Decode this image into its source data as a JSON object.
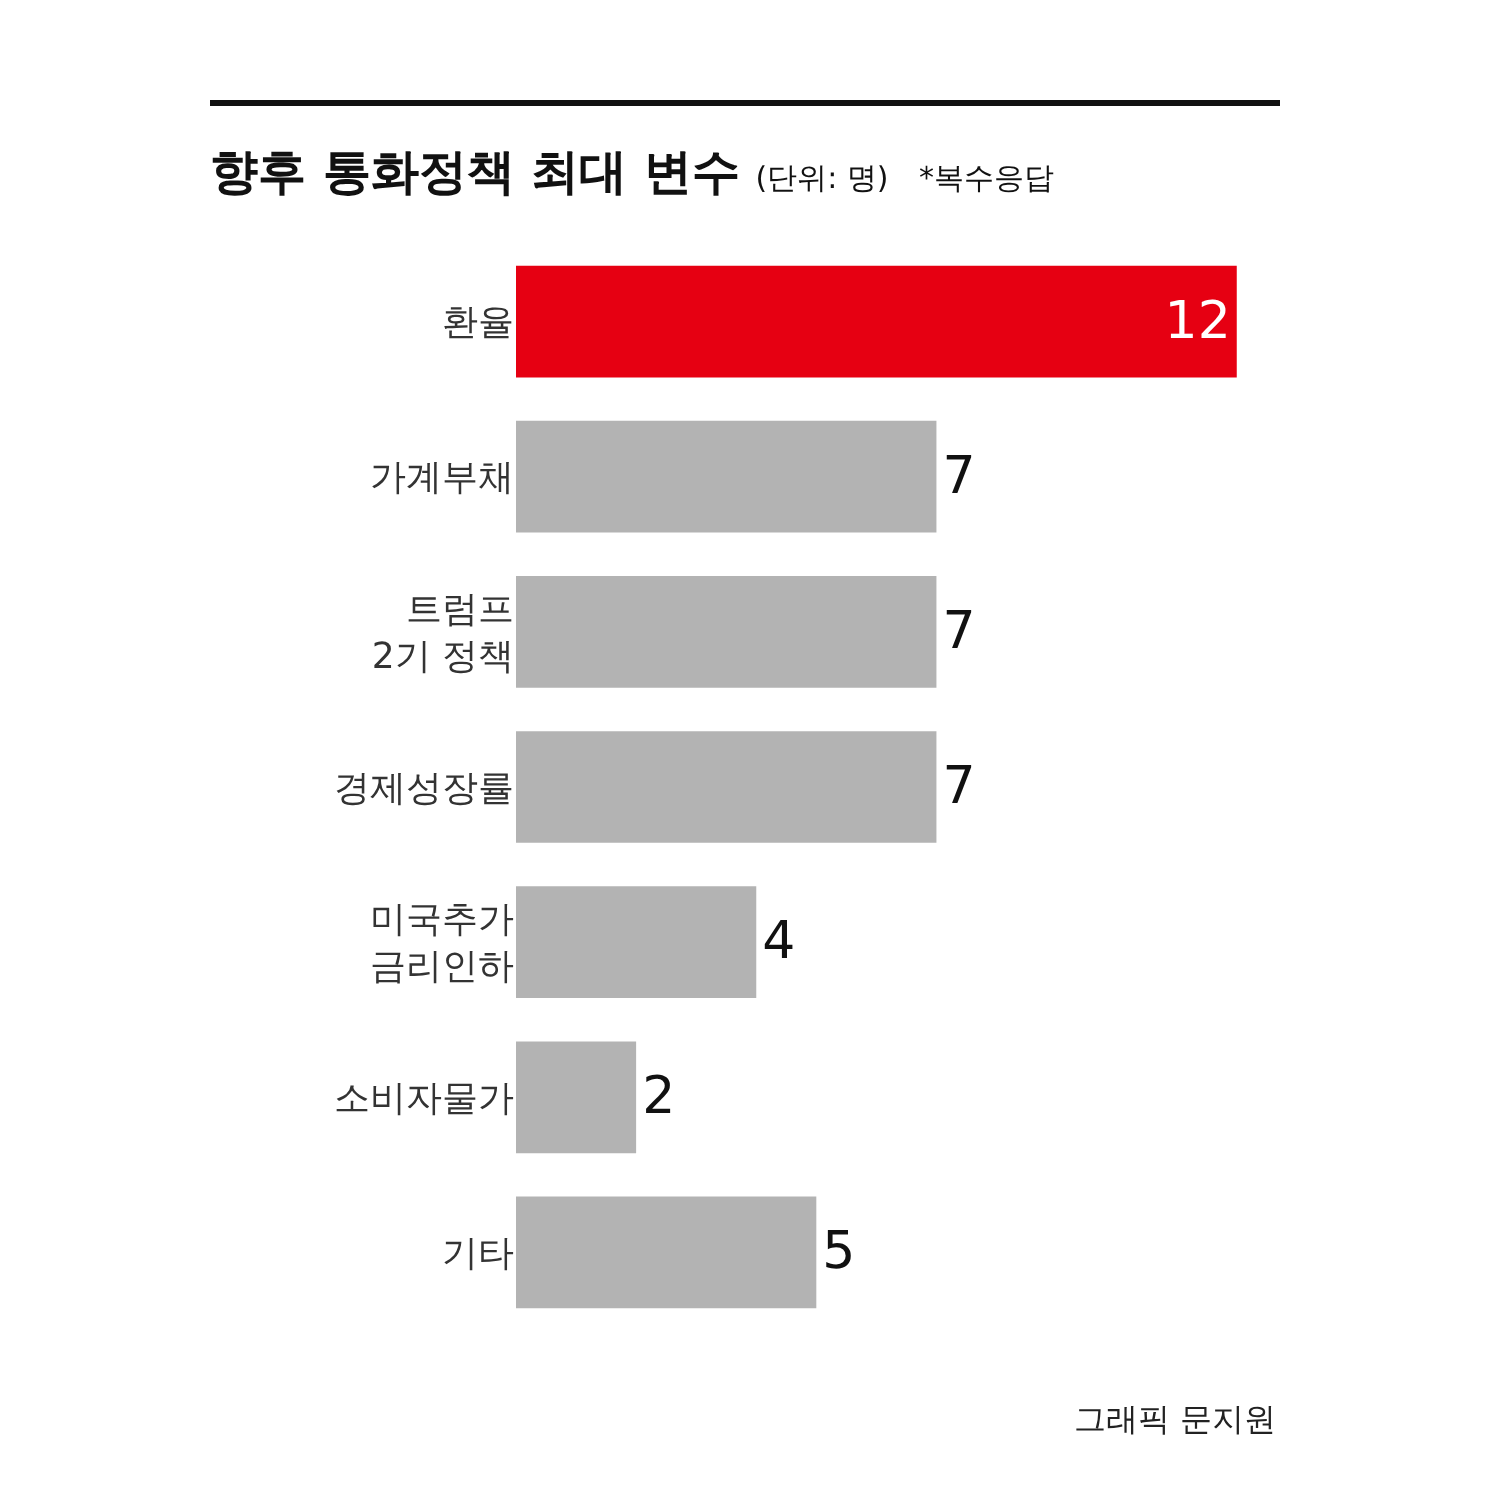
{
  "chart_data": {
    "type": "bar",
    "orientation": "horizontal",
    "title": "향후 통화정책 최대 변수",
    "subtitle": "(단위: 명)",
    "categories": [
      "환율",
      "가계부채",
      "트럼프\n2기 정책",
      "경제성장률",
      "미국추가\n금리인하",
      "소비자물가",
      "기타"
    ],
    "values": [
      12,
      7,
      7,
      7,
      4,
      2,
      5
    ],
    "colors": [
      "#e60012",
      "#b3b3b3",
      "#b3b3b3",
      "#b3b3b3",
      "#b3b3b3",
      "#b3b3b3",
      "#b3b3b3"
    ],
    "data_labels": true,
    "annotations": [
      "*복수응답",
      "그래픽 문지원"
    ]
  }
}
